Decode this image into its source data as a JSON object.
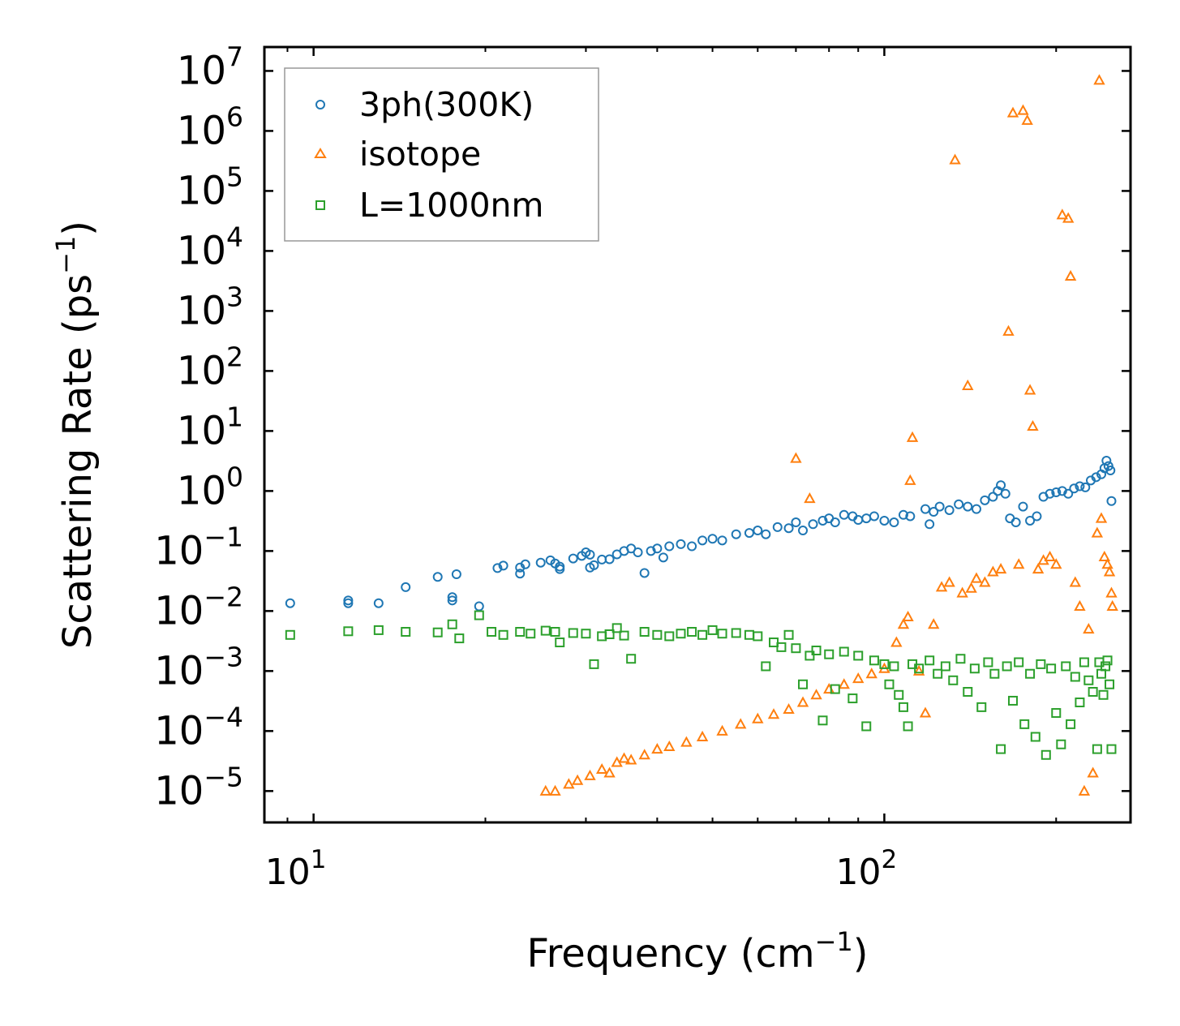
{
  "chart_data": {
    "type": "scatter",
    "xscale": "log",
    "yscale": "log",
    "xlim": [
      8.2,
      270
    ],
    "ylim": [
      3e-06,
      25000000.0
    ],
    "xlabel": "Frequency (cm",
    "xlabel_sup": "−1",
    "xlabel_end": ")",
    "ylabel": "Scattering Rate (ps",
    "ylabel_sup": "−1",
    "ylabel_end": ")",
    "x_ticks": [
      {
        "base": "10",
        "exp": "1",
        "value": 10
      },
      {
        "base": "10",
        "exp": "2",
        "value": 100
      }
    ],
    "y_ticks": [
      {
        "base": "10",
        "exp": "−5",
        "value": 1e-05
      },
      {
        "base": "10",
        "exp": "−4",
        "value": 0.0001
      },
      {
        "base": "10",
        "exp": "−3",
        "value": 0.001
      },
      {
        "base": "10",
        "exp": "−2",
        "value": 0.01
      },
      {
        "base": "10",
        "exp": "−1",
        "value": 0.1
      },
      {
        "base": "10",
        "exp": "0",
        "value": 1
      },
      {
        "base": "10",
        "exp": "1",
        "value": 10
      },
      {
        "base": "10",
        "exp": "2",
        "value": 100
      },
      {
        "base": "10",
        "exp": "3",
        "value": 1000
      },
      {
        "base": "10",
        "exp": "4",
        "value": 10000
      },
      {
        "base": "10",
        "exp": "5",
        "value": 100000
      },
      {
        "base": "10",
        "exp": "6",
        "value": 1000000
      },
      {
        "base": "10",
        "exp": "7",
        "value": 10000000
      }
    ],
    "legend_position": "top-left",
    "series": [
      {
        "name": "3ph(300K)",
        "marker": "circle",
        "color": "#1f77b4",
        "points": [
          [
            9.1,
            0.0135
          ],
          [
            11.5,
            0.015
          ],
          [
            11.5,
            0.0135
          ],
          [
            13,
            0.0135
          ],
          [
            14.5,
            0.025
          ],
          [
            16.5,
            0.037
          ],
          [
            17.5,
            0.017
          ],
          [
            17.5,
            0.015
          ],
          [
            17.8,
            0.041
          ],
          [
            19.5,
            0.012
          ],
          [
            21,
            0.052
          ],
          [
            21.5,
            0.057
          ],
          [
            23,
            0.053
          ],
          [
            23.5,
            0.06
          ],
          [
            23,
            0.042
          ],
          [
            25,
            0.064
          ],
          [
            26,
            0.07
          ],
          [
            26.5,
            0.062
          ],
          [
            27,
            0.05
          ],
          [
            27,
            0.055
          ],
          [
            28.5,
            0.075
          ],
          [
            29.5,
            0.083
          ],
          [
            30,
            0.095
          ],
          [
            30.5,
            0.087
          ],
          [
            31,
            0.058
          ],
          [
            30.5,
            0.053
          ],
          [
            32,
            0.072
          ],
          [
            33,
            0.073
          ],
          [
            34,
            0.088
          ],
          [
            35,
            0.1
          ],
          [
            36,
            0.11
          ],
          [
            37,
            0.095
          ],
          [
            38,
            0.043
          ],
          [
            39,
            0.1
          ],
          [
            40,
            0.11
          ],
          [
            41,
            0.078
          ],
          [
            42,
            0.12
          ],
          [
            44,
            0.13
          ],
          [
            46,
            0.12
          ],
          [
            48,
            0.15
          ],
          [
            50,
            0.16
          ],
          [
            52,
            0.15
          ],
          [
            55,
            0.19
          ],
          [
            58,
            0.2
          ],
          [
            60,
            0.22
          ],
          [
            62,
            0.19
          ],
          [
            65,
            0.25
          ],
          [
            68,
            0.24
          ],
          [
            70,
            0.3
          ],
          [
            72,
            0.22
          ],
          [
            75,
            0.28
          ],
          [
            78,
            0.32
          ],
          [
            80,
            0.35
          ],
          [
            82,
            0.3
          ],
          [
            85,
            0.4
          ],
          [
            88,
            0.38
          ],
          [
            90,
            0.33
          ],
          [
            93,
            0.35
          ],
          [
            96,
            0.38
          ],
          [
            100,
            0.32
          ],
          [
            104,
            0.3
          ],
          [
            108,
            0.4
          ],
          [
            111,
            0.38
          ],
          [
            118,
            0.5
          ],
          [
            120,
            0.28
          ],
          [
            122,
            0.45
          ],
          [
            125,
            0.55
          ],
          [
            130,
            0.48
          ],
          [
            135,
            0.6
          ],
          [
            140,
            0.55
          ],
          [
            145,
            0.5
          ],
          [
            150,
            0.7
          ],
          [
            155,
            0.8
          ],
          [
            158,
            1.0
          ],
          [
            160,
            1.25
          ],
          [
            163,
            0.9
          ],
          [
            166,
            0.35
          ],
          [
            170,
            0.3
          ],
          [
            175,
            0.55
          ],
          [
            180,
            0.32
          ],
          [
            185,
            0.38
          ],
          [
            190,
            0.8
          ],
          [
            195,
            0.9
          ],
          [
            200,
            0.95
          ],
          [
            205,
            1.0
          ],
          [
            210,
            0.9
          ],
          [
            215,
            1.1
          ],
          [
            220,
            1.2
          ],
          [
            225,
            1.15
          ],
          [
            230,
            1.5
          ],
          [
            235,
            1.7
          ],
          [
            240,
            1.9
          ],
          [
            243,
            2.4
          ],
          [
            245,
            3.2
          ],
          [
            247,
            2.6
          ],
          [
            249,
            2.2
          ],
          [
            250,
            0.68
          ]
        ]
      },
      {
        "name": "isotope",
        "marker": "triangle",
        "color": "#ff7f0e",
        "points": [
          [
            25.5,
            1e-05
          ],
          [
            26.5,
            1e-05
          ],
          [
            28,
            1.3e-05
          ],
          [
            29,
            1.5e-05
          ],
          [
            30.5,
            1.8e-05
          ],
          [
            32,
            2.3e-05
          ],
          [
            33,
            2e-05
          ],
          [
            34,
            3e-05
          ],
          [
            35,
            3.5e-05
          ],
          [
            36,
            3.3e-05
          ],
          [
            38,
            4e-05
          ],
          [
            40,
            5e-05
          ],
          [
            42,
            5.5e-05
          ],
          [
            45,
            6.5e-05
          ],
          [
            48,
            8e-05
          ],
          [
            52,
            0.0001
          ],
          [
            56,
            0.00013
          ],
          [
            60,
            0.00016
          ],
          [
            64,
            0.00019
          ],
          [
            68,
            0.00023
          ],
          [
            70,
            3.5
          ],
          [
            72,
            0.0003
          ],
          [
            74,
            0.75
          ],
          [
            76,
            0.0004
          ],
          [
            80,
            0.0005
          ],
          [
            85,
            0.0006
          ],
          [
            90,
            0.00075
          ],
          [
            95,
            0.0009
          ],
          [
            100,
            0.0011
          ],
          [
            105,
            0.003
          ],
          [
            108,
            0.006
          ],
          [
            110,
            0.008
          ],
          [
            111,
            1.5
          ],
          [
            112,
            7.8
          ],
          [
            115,
            0.001
          ],
          [
            118,
            0.0002
          ],
          [
            122,
            0.006
          ],
          [
            126,
            0.025
          ],
          [
            130,
            0.03
          ],
          [
            133,
            330000.0
          ],
          [
            137,
            0.02
          ],
          [
            140,
            57
          ],
          [
            142,
            0.024
          ],
          [
            145,
            0.035
          ],
          [
            150,
            0.03
          ],
          [
            155,
            0.045
          ],
          [
            160,
            0.05
          ],
          [
            165,
            460
          ],
          [
            168,
            2000000.0
          ],
          [
            172,
            0.06
          ],
          [
            175,
            2200000.0
          ],
          [
            178,
            1500000.0
          ],
          [
            180,
            48
          ],
          [
            182,
            12
          ],
          [
            186,
            0.05
          ],
          [
            190,
            0.07
          ],
          [
            195,
            0.08
          ],
          [
            200,
            0.06
          ],
          [
            205,
            40000.0
          ],
          [
            210,
            35000.0
          ],
          [
            212,
            3800
          ],
          [
            216,
            0.03
          ],
          [
            220,
            0.012
          ],
          [
            224,
            1e-05
          ],
          [
            228,
            0.005
          ],
          [
            232,
            2e-05
          ],
          [
            236,
            0.2
          ],
          [
            238,
            7000000.0
          ],
          [
            240,
            0.35
          ],
          [
            243,
            0.08
          ],
          [
            246,
            0.06
          ],
          [
            248,
            0.045
          ],
          [
            250,
            0.02
          ],
          [
            251,
            0.012
          ]
        ]
      },
      {
        "name": "L=1000nm",
        "marker": "square",
        "color": "#2ca02c",
        "points": [
          [
            9.1,
            0.004
          ],
          [
            11.5,
            0.0046
          ],
          [
            13,
            0.0048
          ],
          [
            14.5,
            0.0045
          ],
          [
            16.5,
            0.0044
          ],
          [
            17.5,
            0.006
          ],
          [
            18,
            0.0035
          ],
          [
            19.5,
            0.0085
          ],
          [
            20.5,
            0.0045
          ],
          [
            21.5,
            0.004
          ],
          [
            23,
            0.0045
          ],
          [
            24,
            0.0042
          ],
          [
            25.5,
            0.0047
          ],
          [
            26.5,
            0.0045
          ],
          [
            27,
            0.003
          ],
          [
            28.5,
            0.0043
          ],
          [
            30,
            0.0042
          ],
          [
            31,
            0.0013
          ],
          [
            32,
            0.0038
          ],
          [
            33,
            0.0041
          ],
          [
            34,
            0.0052
          ],
          [
            35,
            0.0039
          ],
          [
            36,
            0.0016
          ],
          [
            38,
            0.0045
          ],
          [
            40,
            0.004
          ],
          [
            42,
            0.0038
          ],
          [
            44,
            0.0042
          ],
          [
            46,
            0.0045
          ],
          [
            48,
            0.004
          ],
          [
            50,
            0.0048
          ],
          [
            52,
            0.0042
          ],
          [
            55,
            0.0043
          ],
          [
            58,
            0.004
          ],
          [
            60,
            0.0038
          ],
          [
            62,
            0.0012
          ],
          [
            64,
            0.003
          ],
          [
            66,
            0.0025
          ],
          [
            68,
            0.004
          ],
          [
            70,
            0.0024
          ],
          [
            72,
            0.0006
          ],
          [
            74,
            0.0018
          ],
          [
            76,
            0.0022
          ],
          [
            78,
            0.00015
          ],
          [
            80,
            0.0019
          ],
          [
            82,
            0.0005
          ],
          [
            85,
            0.0021
          ],
          [
            88,
            0.00035
          ],
          [
            90,
            0.0018
          ],
          [
            93,
            0.00012
          ],
          [
            96,
            0.0015
          ],
          [
            100,
            0.0013
          ],
          [
            102,
            0.0006
          ],
          [
            104,
            0.0012
          ],
          [
            106,
            0.0004
          ],
          [
            108,
            0.00025
          ],
          [
            110,
            0.00012
          ],
          [
            112,
            0.0013
          ],
          [
            115,
            0.0011
          ],
          [
            120,
            0.0015
          ],
          [
            124,
            0.0009
          ],
          [
            128,
            0.0012
          ],
          [
            132,
            0.0007
          ],
          [
            136,
            0.0016
          ],
          [
            140,
            0.00045
          ],
          [
            144,
            0.0011
          ],
          [
            148,
            0.00025
          ],
          [
            152,
            0.0014
          ],
          [
            156,
            0.0009
          ],
          [
            160,
            5e-05
          ],
          [
            164,
            0.0012
          ],
          [
            168,
            0.00032
          ],
          [
            172,
            0.0014
          ],
          [
            176,
            0.00013
          ],
          [
            180,
            0.0009
          ],
          [
            184,
            8e-05
          ],
          [
            188,
            0.0013
          ],
          [
            192,
            4e-05
          ],
          [
            196,
            0.0011
          ],
          [
            200,
            0.0002
          ],
          [
            204,
            6e-05
          ],
          [
            208,
            0.0012
          ],
          [
            212,
            0.00013
          ],
          [
            216,
            0.0008
          ],
          [
            220,
            0.0003
          ],
          [
            224,
            0.0014
          ],
          [
            228,
            0.0007
          ],
          [
            232,
            0.00045
          ],
          [
            236,
            5e-05
          ],
          [
            238,
            0.0014
          ],
          [
            240,
            0.0009
          ],
          [
            242,
            0.0004
          ],
          [
            244,
            0.0012
          ],
          [
            246,
            0.0015
          ],
          [
            248,
            0.0006
          ],
          [
            250,
            5e-05
          ]
        ]
      }
    ]
  }
}
